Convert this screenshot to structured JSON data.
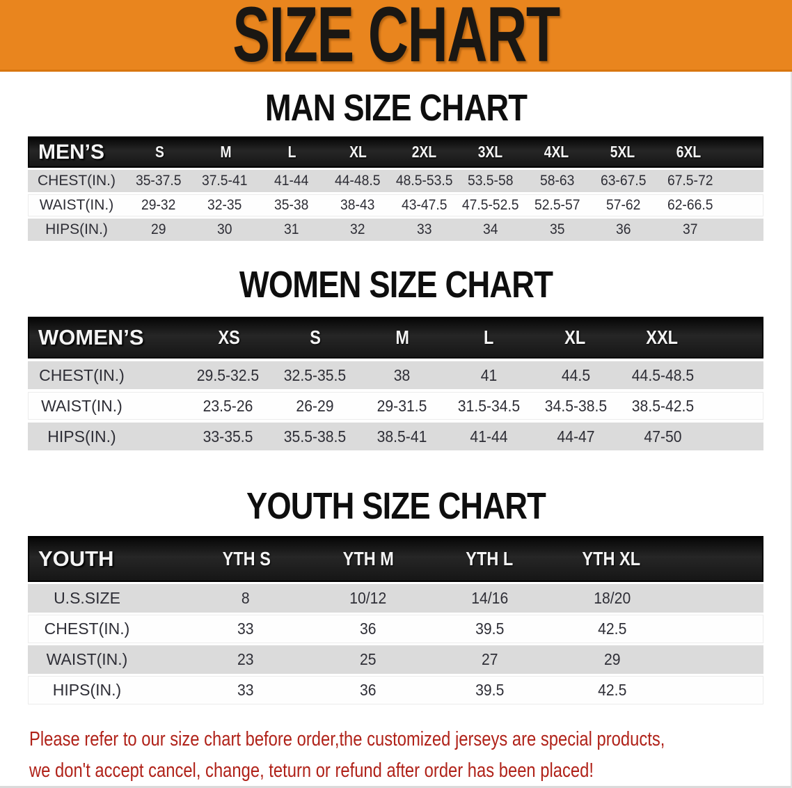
{
  "banner": {
    "title": "SIZE CHART"
  },
  "colors": {
    "accent_orange": "#E9851E",
    "banner_text": "#1A1713",
    "header_bar": "#161616",
    "row_shade": "#DBDBDB",
    "body_text": "#2E2E36",
    "disclaimer_red": "#B02219"
  },
  "sections": [
    {
      "id": "mens",
      "title": "MAN SIZE CHART",
      "header_label": "MEN’S",
      "columns": [
        "S",
        "M",
        "L",
        "XL",
        "2XL",
        "3XL",
        "4XL",
        "5XL",
        "6XL"
      ],
      "rows": [
        {
          "label": "CHEST(IN.)",
          "shaded": true,
          "values": [
            "35-37.5",
            "37.5-41",
            "41-44",
            "44-48.5",
            "48.5-53.5",
            "53.5-58",
            "58-63",
            "63-67.5",
            "67.5-72"
          ]
        },
        {
          "label": "WAIST(IN.)",
          "shaded": false,
          "values": [
            "29-32",
            "32-35",
            "35-38",
            "38-43",
            "43-47.5",
            "47.5-52.5",
            "52.5-57",
            "57-62",
            "62-66.5"
          ]
        },
        {
          "label": "HIPS(IN.)",
          "shaded": true,
          "values": [
            "29",
            "30",
            "31",
            "32",
            "33",
            "34",
            "35",
            "36",
            "37"
          ]
        }
      ]
    },
    {
      "id": "womens",
      "title": "WOMEN SIZE CHART",
      "header_label": "WOMEN’S",
      "columns": [
        "XS",
        "S",
        "M",
        "L",
        "XL",
        "XXL"
      ],
      "rows": [
        {
          "label": "CHEST(IN.)",
          "shaded": true,
          "values": [
            "29.5-32.5",
            "32.5-35.5",
            "38",
            "41",
            "44.5",
            "44.5-48.5"
          ]
        },
        {
          "label": "WAIST(IN.)",
          "shaded": false,
          "values": [
            "23.5-26",
            "26-29",
            "29-31.5",
            "31.5-34.5",
            "34.5-38.5",
            "38.5-42.5"
          ]
        },
        {
          "label": "HIPS(IN.)",
          "shaded": true,
          "values": [
            "33-35.5",
            "35.5-38.5",
            "38.5-41",
            "41-44",
            "44-47",
            "47-50"
          ]
        }
      ]
    },
    {
      "id": "youth",
      "title": "YOUTH SIZE CHART",
      "header_label": "YOUTH",
      "columns": [
        "YTH S",
        "YTH M",
        "YTH L",
        "YTH XL"
      ],
      "rows": [
        {
          "label": "U.S.SIZE",
          "shaded": true,
          "values": [
            "8",
            "10/12",
            "14/16",
            "18/20"
          ]
        },
        {
          "label": "CHEST(IN.)",
          "shaded": false,
          "values": [
            "33",
            "36",
            "39.5",
            "42.5"
          ]
        },
        {
          "label": "WAIST(IN.)",
          "shaded": true,
          "values": [
            "23",
            "25",
            "27",
            "29"
          ]
        },
        {
          "label": "HIPS(IN.)",
          "shaded": false,
          "values": [
            "33",
            "36",
            "39.5",
            "42.5"
          ]
        }
      ]
    }
  ],
  "disclaimer": {
    "line1": "Please refer to our size chart before order,the customized jerseys are special products,",
    "line2": "we don't accept cancel, change, teturn or refund after order has been placed!"
  }
}
